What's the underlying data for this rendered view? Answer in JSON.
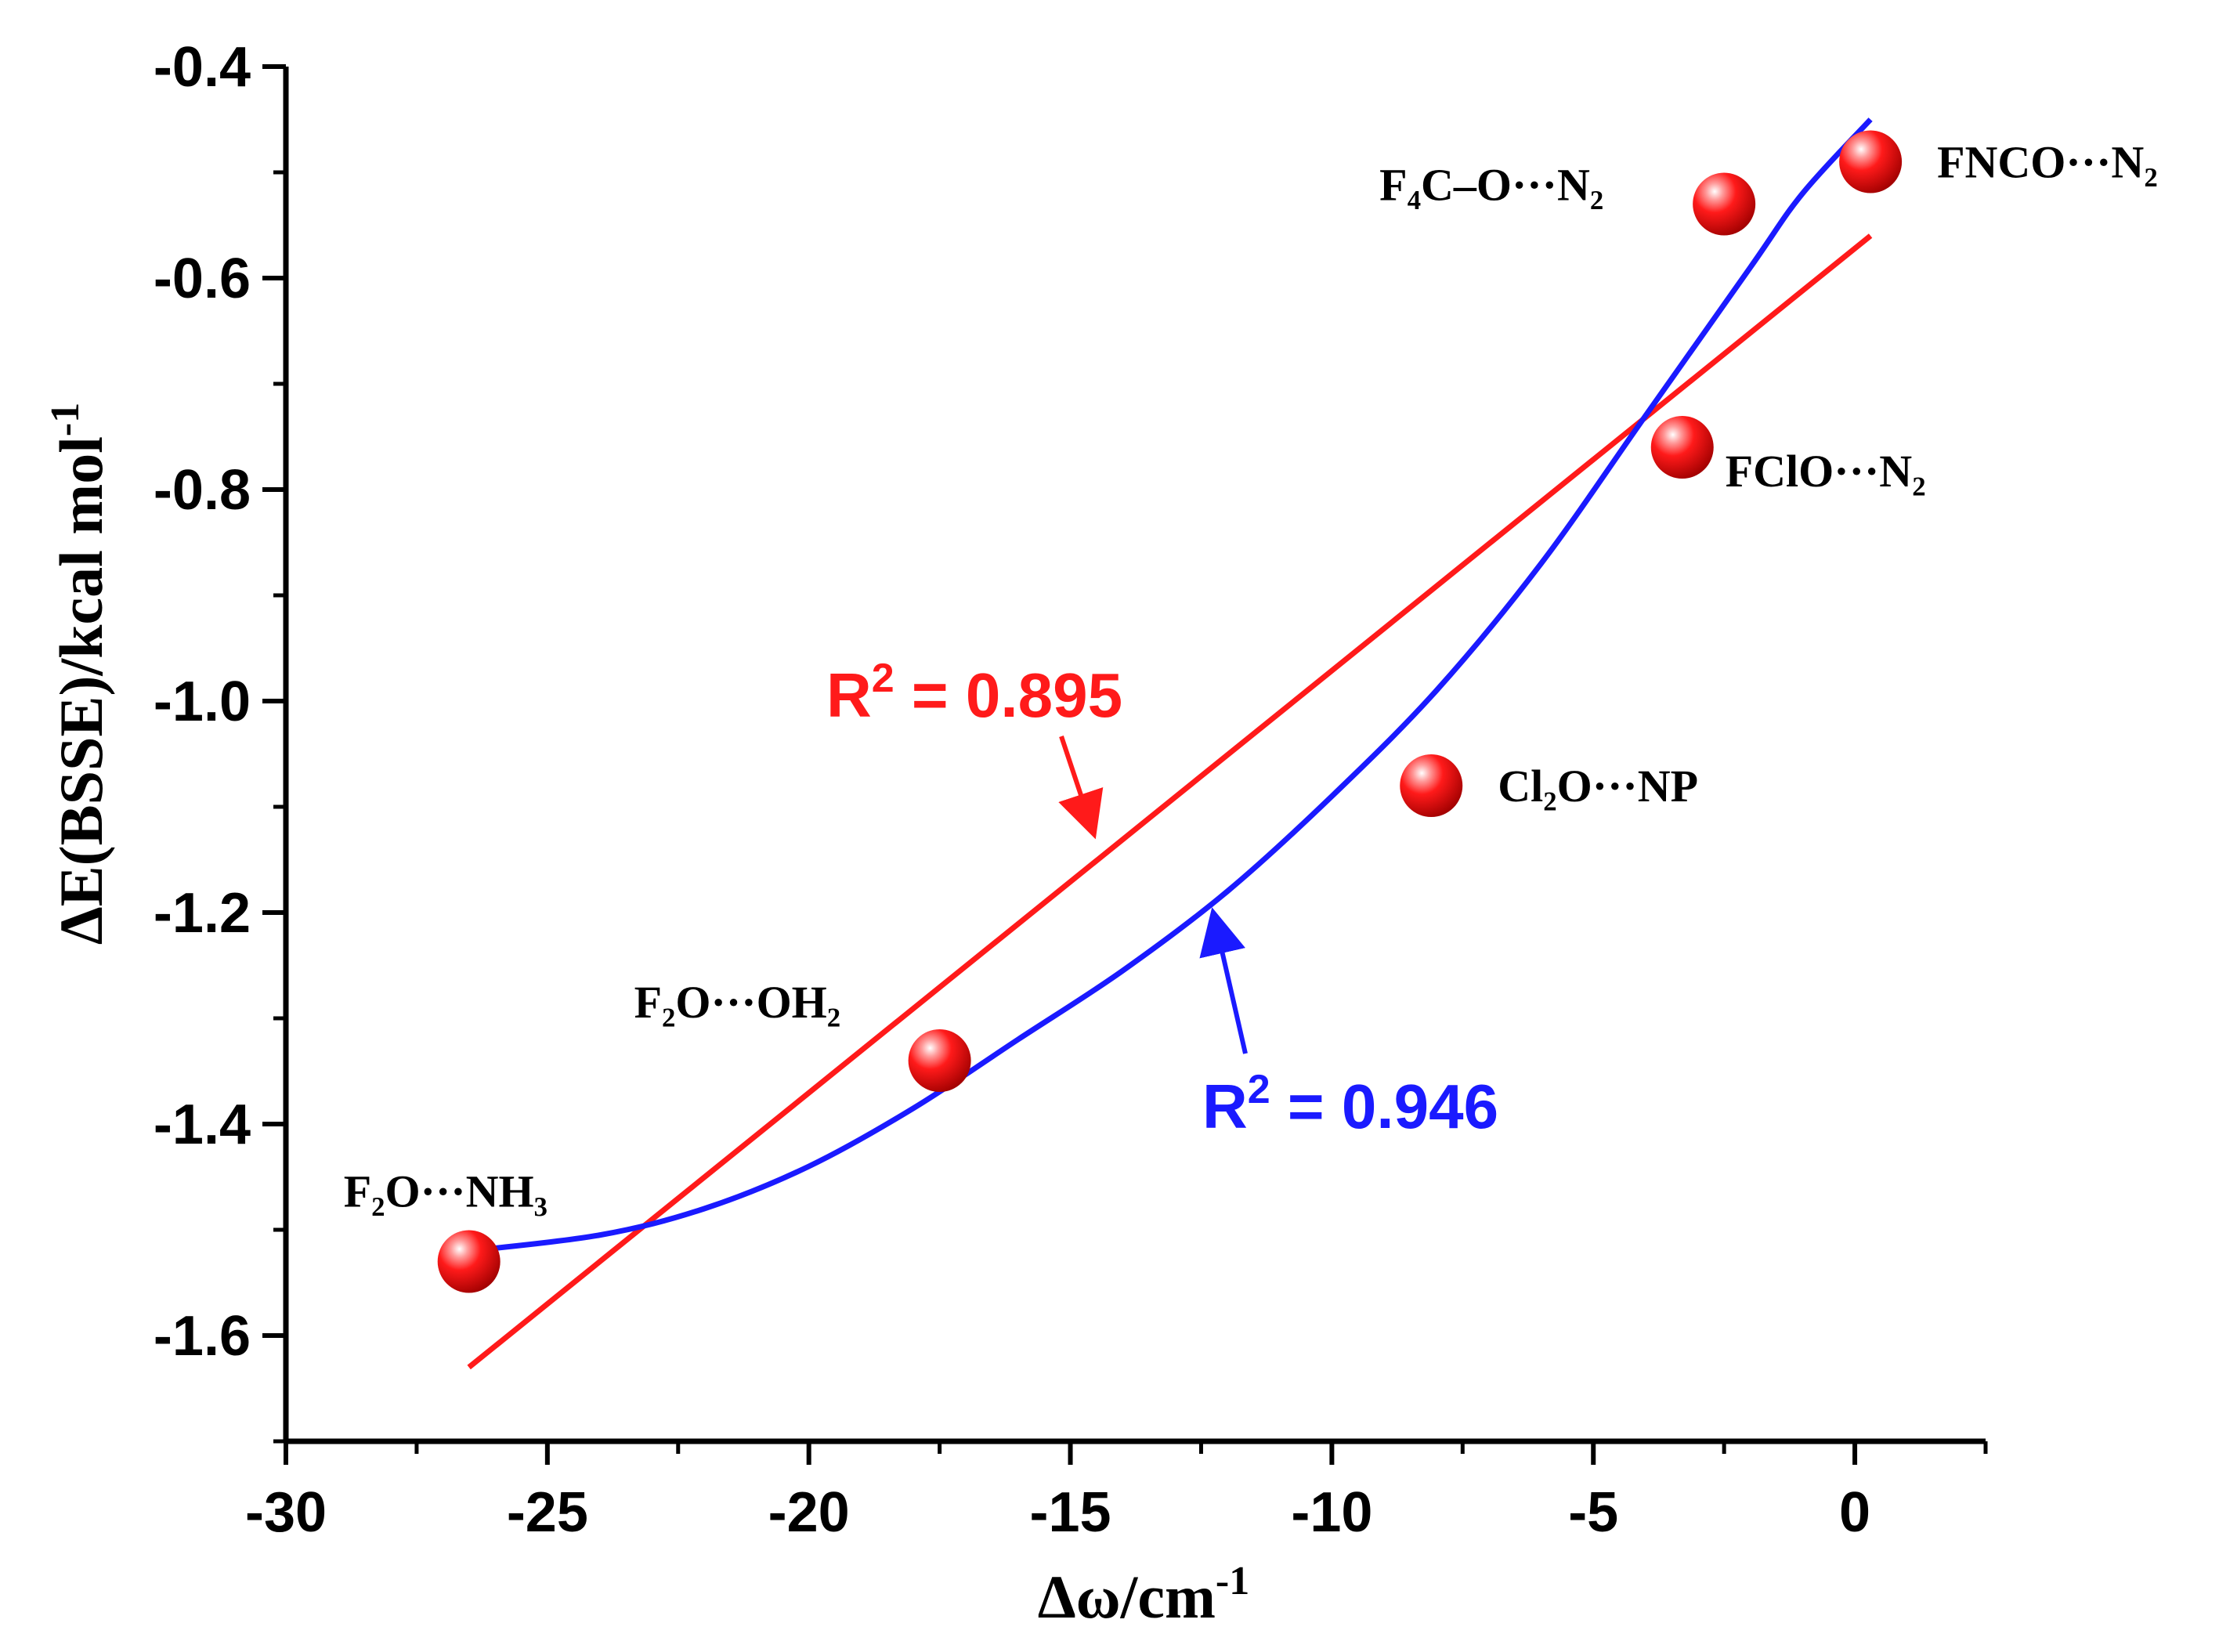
{
  "chart_data": {
    "type": "scatter",
    "xlabel": "Δω/cm",
    "xlabel_sup": "-1",
    "ylabel": "ΔE(BSSE)/kcal mol",
    "ylabel_sup": "-1",
    "xlim": [
      -30,
      2.5
    ],
    "ylim": [
      -1.7,
      -0.4
    ],
    "xticks": [
      -30,
      -25,
      -20,
      -15,
      -10,
      -5,
      0
    ],
    "xtick_labels": [
      "-30",
      "-25",
      "-20",
      "-15",
      "-10",
      "-5",
      "0"
    ],
    "yticks": [
      -1.6,
      -1.4,
      -1.2,
      -1.0,
      -0.8,
      -0.6,
      -0.4
    ],
    "ytick_labels": [
      "-1.6",
      "-1.4",
      "-1.2",
      "-1.0",
      "-0.8",
      "-0.6",
      "-0.4"
    ],
    "points": [
      {
        "x": -26.5,
        "y": -1.53,
        "label": "F₂O···NH₃"
      },
      {
        "x": -17.5,
        "y": -1.34,
        "label": "F₂O···OH₂"
      },
      {
        "x": -8.1,
        "y": -1.08,
        "label": "Cl₂O···NP"
      },
      {
        "x": -3.3,
        "y": -0.76,
        "label": "FClO···N₂"
      },
      {
        "x": -2.5,
        "y": -0.53,
        "label": "F₄C–O···N₂"
      },
      {
        "x": 0.3,
        "y": -0.49,
        "label": "FNCO···N₂"
      }
    ],
    "fits": [
      {
        "name": "linear",
        "color": "#ff1a1a",
        "kind": "line",
        "x_range": [
          -26.5,
          0.3
        ],
        "y_range": [
          -1.63,
          -0.56
        ],
        "r2_text": "R",
        "r2_sup": "2",
        "r2_value": " = 0.895"
      },
      {
        "name": "quadratic",
        "color": "#1a1aff",
        "kind": "curve",
        "points_xy": [
          [
            -26.5,
            -1.52
          ],
          [
            -24,
            -1.505
          ],
          [
            -22,
            -1.48
          ],
          [
            -20,
            -1.44
          ],
          [
            -18,
            -1.385
          ],
          [
            -16,
            -1.32
          ],
          [
            -14,
            -1.255
          ],
          [
            -12,
            -1.18
          ],
          [
            -10,
            -1.09
          ],
          [
            -8,
            -0.99
          ],
          [
            -6,
            -0.87
          ],
          [
            -4,
            -0.73
          ],
          [
            -2,
            -0.59
          ],
          [
            -1,
            -0.52
          ],
          [
            0.3,
            -0.45
          ]
        ],
        "r2_text": "R",
        "r2_sup": "2",
        "r2_value": " = 0.946"
      }
    ]
  }
}
